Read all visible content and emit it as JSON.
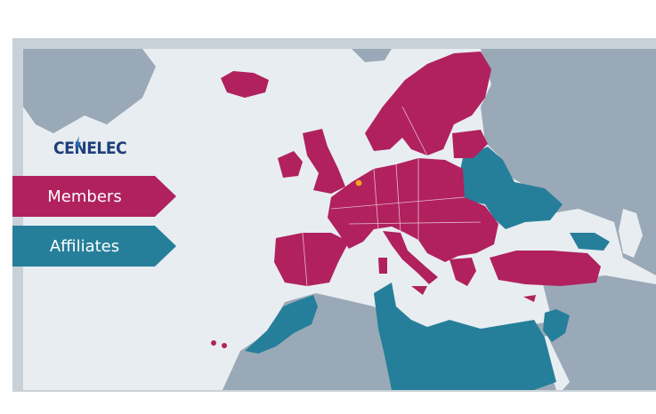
{
  "logo": {
    "text": "CENELEC"
  },
  "legend": {
    "members_label": "Members",
    "affiliates_label": "Affiliates"
  },
  "colors": {
    "members": "#b0215e",
    "affiliates": "#267f9a",
    "sea": "#e8edf1",
    "non_member_land": "#9aa9b7",
    "frame": "#c9d1d8",
    "headquarters_marker": "#f2a41f"
  },
  "map": {
    "region": "Europe",
    "markers": [
      {
        "name": "headquarters",
        "icon": "location-dot-icon"
      }
    ]
  }
}
